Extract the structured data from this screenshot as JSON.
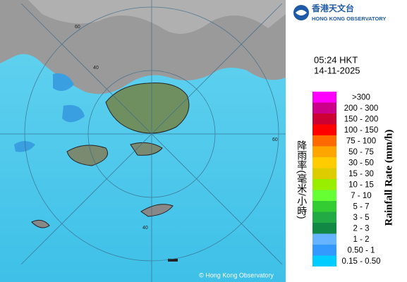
{
  "header": {
    "org_chinese": "香港天文台",
    "org_english": "HONG KONG OBSERVATORY"
  },
  "time": "05:24 HKT",
  "date": "14-11-2025",
  "legend": {
    "title_chinese": "降雨率(毫米/小時)",
    "title_english": "Rainfall Rate (mm/h)",
    "items": [
      {
        "label": ">300",
        "color": "#ff00ff"
      },
      {
        "label": "200 - 300",
        "color": "#cc0088"
      },
      {
        "label": "150 - 200",
        "color": "#cc0033"
      },
      {
        "label": "100 - 150",
        "color": "#ff0000"
      },
      {
        "label": "75 - 100",
        "color": "#ff6a00"
      },
      {
        "label": "50 - 75",
        "color": "#ffa500"
      },
      {
        "label": "30 - 50",
        "color": "#ffcc00"
      },
      {
        "label": "15 - 30",
        "color": "#ddcc00"
      },
      {
        "label": "10 - 15",
        "color": "#99ee00"
      },
      {
        "label": "7 - 10",
        "color": "#66ff33"
      },
      {
        "label": "5 - 7",
        "color": "#33cc33"
      },
      {
        "label": "3 - 5",
        "color": "#22aa44"
      },
      {
        "label": "2 - 3",
        "color": "#118844"
      },
      {
        "label": "1 - 2",
        "color": "#66b3ff"
      },
      {
        "label": "0.50 - 1",
        "color": "#3399ff"
      },
      {
        "label": "0.15 - 0.50",
        "color": "#00ccff"
      }
    ]
  },
  "map": {
    "ring_labels": [
      "60",
      "40",
      "60",
      "40"
    ],
    "copyright": "© Hong Kong Observatory"
  }
}
